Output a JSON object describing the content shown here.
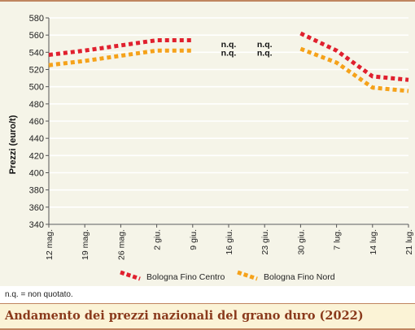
{
  "chart_data": {
    "type": "line",
    "title": "Andamento dei prezzi nazionali del grano duro (2022)",
    "ylabel": "Prezzi (euro/t)",
    "xlabel": "",
    "ylim": [
      340,
      580
    ],
    "yticks": [
      340,
      360,
      380,
      400,
      420,
      440,
      460,
      480,
      500,
      520,
      540,
      560,
      580
    ],
    "categories": [
      "12 mag.",
      "19 mag.",
      "26 mag.",
      "2 giu.",
      "9 giu.",
      "16 giu.",
      "23 giu.",
      "30 giu.",
      "7 lug.",
      "14 lug.",
      "21 lug."
    ],
    "grid": "horizontal",
    "legend": "bottom",
    "series": [
      {
        "name": "Bologna Fino Centro",
        "color": "#e0202e",
        "values": [
          537,
          542,
          548,
          554,
          554,
          null,
          null,
          562,
          542,
          512,
          508
        ]
      },
      {
        "name": "Bologna Fino Nord",
        "color": "#f5a21a",
        "values": [
          525,
          530,
          536,
          542,
          542,
          null,
          null,
          544,
          528,
          499,
          495
        ]
      }
    ],
    "annotations": [
      {
        "text": "n.q.",
        "category": "16 giu.",
        "series": "Bologna Fino Centro",
        "y": 550
      },
      {
        "text": "n.q.",
        "category": "23 giu.",
        "series": "Bologna Fino Centro",
        "y": 550
      },
      {
        "text": "n.q.",
        "category": "16 giu.",
        "series": "Bologna Fino Nord",
        "y": 540
      },
      {
        "text": "n.q.",
        "category": "23 giu.",
        "series": "Bologna Fino Nord",
        "y": 540
      }
    ]
  },
  "note": "n.q. = non quotato.",
  "footer_title": "Andamento dei prezzi nazionali del grano duro (2022)"
}
